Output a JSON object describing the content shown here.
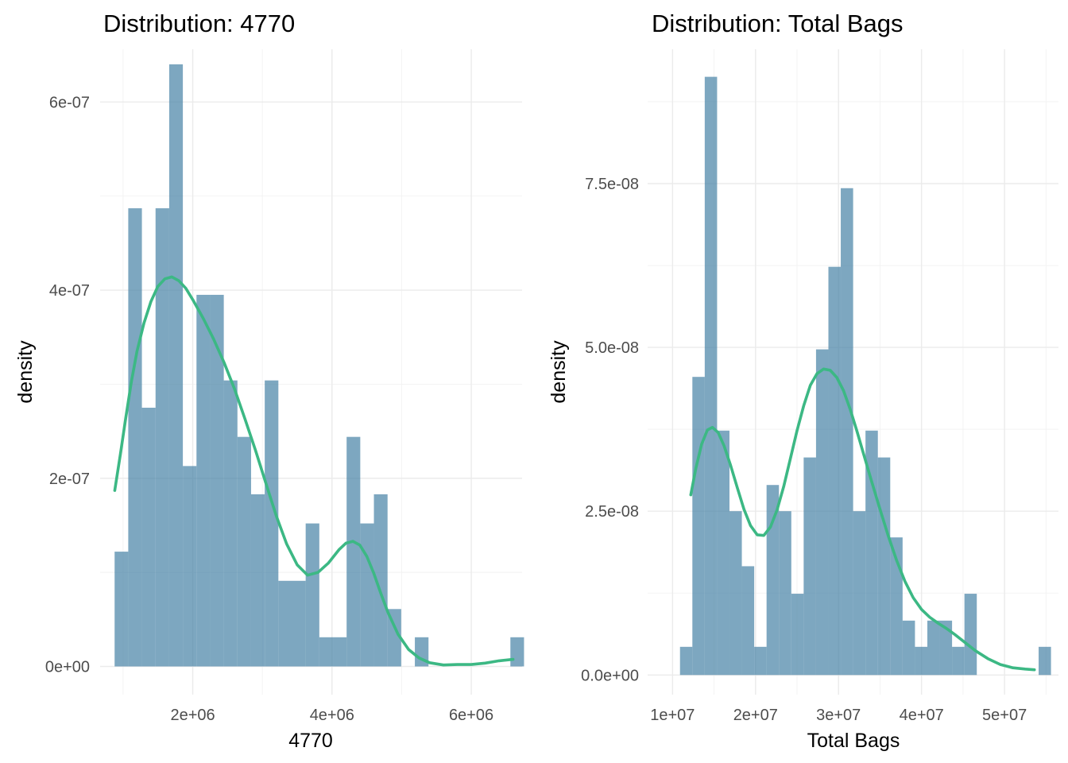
{
  "colors": {
    "bar": "#4682a5",
    "density_line": "#3cb884",
    "grid": "#ebebeb",
    "tick_text": "#4d4d4d"
  },
  "chart_data": [
    {
      "type": "histogram",
      "title": "Distribution: 4770",
      "xlabel": "4770",
      "ylabel": "density",
      "xlim": [
        670000,
        6730000
      ],
      "ylim": [
        -3e-08,
        6.56e-07
      ],
      "grid": true,
      "legend": "none",
      "x_ticks": [
        2000000,
        4000000,
        6000000
      ],
      "x_tick_labels": [
        "2e+06",
        "4e+06",
        "6e+06"
      ],
      "y_ticks": [
        0,
        2e-07,
        4e-07,
        6e-07
      ],
      "y_tick_labels": [
        "0e+00",
        "2e-07",
        "4e-07",
        "6e-07"
      ],
      "bins": {
        "start": 878000,
        "width": 196000,
        "values": [
          1.22e-07,
          4.87e-07,
          2.75e-07,
          4.87e-07,
          6.4e-07,
          2.13e-07,
          3.95e-07,
          3.95e-07,
          3.04e-07,
          2.44e-07,
          1.83e-07,
          3.04e-07,
          9.1e-08,
          9.1e-08,
          1.52e-07,
          3.1e-08,
          3.1e-08,
          2.44e-07,
          1.52e-07,
          1.83e-07,
          6.1e-08,
          0,
          3.1e-08,
          0,
          0,
          0,
          0,
          0,
          0,
          3.1e-08
        ]
      },
      "density_curve": {
        "x": [
          880000,
          960000,
          1040000,
          1120000,
          1200000,
          1300000,
          1400000,
          1500000,
          1600000,
          1700000,
          1800000,
          1900000,
          2000000,
          2150000,
          2300000,
          2450000,
          2600000,
          2750000,
          2900000,
          3050000,
          3200000,
          3350000,
          3500000,
          3650000,
          3800000,
          3950000,
          4100000,
          4200000,
          4300000,
          4400000,
          4500000,
          4600000,
          4700000,
          4800000,
          4950000,
          5100000,
          5250000,
          5400000,
          5600000,
          5800000,
          6000000,
          6200000,
          6400000,
          6600000
        ],
        "y": [
          1.87e-07,
          2.25e-07,
          2.65e-07,
          3.03e-07,
          3.35e-07,
          3.65e-07,
          3.88e-07,
          4.04e-07,
          4.12e-07,
          4.14e-07,
          4.1e-07,
          4.02e-07,
          3.9e-07,
          3.7e-07,
          3.48e-07,
          3.23e-07,
          2.95e-07,
          2.63e-07,
          2.3e-07,
          1.95e-07,
          1.6e-07,
          1.3e-07,
          1.08e-07,
          9.7e-08,
          1e-07,
          1.1e-07,
          1.24e-07,
          1.31e-07,
          1.33e-07,
          1.29e-07,
          1.17e-07,
          9.9e-08,
          7.8e-08,
          5.8e-08,
          3.4e-08,
          1.8e-08,
          9e-09,
          4e-09,
          1.5e-09,
          2e-09,
          2e-09,
          3.5e-09,
          6e-09,
          7.5e-09
        ]
      }
    },
    {
      "type": "histogram",
      "title": "Distribution: Total Bags",
      "xlabel": "Total Bags",
      "ylabel": "density",
      "xlim": [
        7000000,
        56500000
      ],
      "ylim": [
        -3e-09,
        9.55e-08
      ],
      "grid": true,
      "legend": "none",
      "x_ticks": [
        10000000,
        20000000,
        30000000,
        40000000,
        50000000
      ],
      "x_tick_labels": [
        "1e+07",
        "2e+07",
        "3e+07",
        "4e+07",
        "5e+07"
      ],
      "y_ticks": [
        0,
        2.5e-08,
        5e-08,
        7.5e-08
      ],
      "y_tick_labels": [
        "0.0e+00",
        "2.5e-08",
        "5.0e-08",
        "7.5e-08"
      ],
      "bins": {
        "start": 10900000,
        "width": 1490000,
        "values": [
          4.3e-09,
          4.55e-08,
          9.13e-08,
          3.73e-08,
          2.5e-08,
          1.66e-08,
          4.3e-09,
          2.9e-08,
          2.5e-08,
          1.24e-08,
          3.32e-08,
          4.97e-08,
          6.23e-08,
          7.43e-08,
          2.5e-08,
          3.73e-08,
          3.32e-08,
          2.1e-08,
          8.3e-09,
          4.3e-09,
          8.3e-09,
          8.3e-09,
          4.3e-09,
          1.24e-08,
          0,
          0,
          0,
          0,
          0,
          4.3e-09
        ]
      },
      "density_curve": {
        "x": [
          12200000,
          12800000,
          13500000,
          14200000,
          14800000,
          15500000,
          16200000,
          17000000,
          17800000,
          18600000,
          19400000,
          20200000,
          21000000,
          21800000,
          22600000,
          23400000,
          24200000,
          25000000,
          25800000,
          26600000,
          27400000,
          28200000,
          29000000,
          29800000,
          30600000,
          31400000,
          32200000,
          33000000,
          34000000,
          35000000,
          36000000,
          37000000,
          38000000,
          39000000,
          40000000,
          41000000,
          42000000,
          43000000,
          44000000,
          45000000,
          46500000,
          48000000,
          49500000,
          51000000,
          52500000,
          53600000
        ],
        "y": [
          2.75e-08,
          3.15e-08,
          3.52e-08,
          3.74e-08,
          3.78e-08,
          3.7e-08,
          3.5e-08,
          3.2e-08,
          2.86e-08,
          2.53e-08,
          2.28e-08,
          2.14e-08,
          2.13e-08,
          2.26e-08,
          2.52e-08,
          2.88e-08,
          3.3e-08,
          3.73e-08,
          4.11e-08,
          4.42e-08,
          4.6e-08,
          4.67e-08,
          4.65e-08,
          4.54e-08,
          4.34e-08,
          4.06e-08,
          3.73e-08,
          3.38e-08,
          2.95e-08,
          2.53e-08,
          2.12e-08,
          1.75e-08,
          1.43e-08,
          1.18e-08,
          1e-08,
          8.8e-09,
          7.9e-09,
          7.1e-09,
          6.2e-09,
          5.2e-09,
          3.7e-09,
          2.5e-09,
          1.6e-09,
          1.1e-09,
          9e-10,
          8e-10
        ]
      }
    }
  ]
}
